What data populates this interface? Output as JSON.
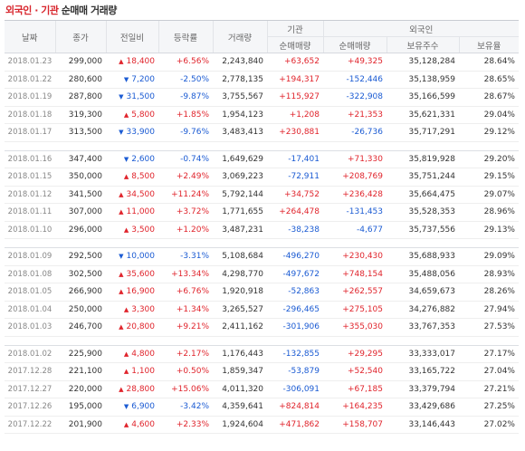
{
  "title": {
    "part1": "외국인 · 기관",
    "part2": "순매매 거래량"
  },
  "headers": {
    "date": "날짜",
    "close": "종가",
    "change": "전일비",
    "rate": "등락률",
    "volume": "거래량",
    "institution": "기관",
    "foreign": "외국인",
    "inst_net": "순매매량",
    "foreign_net": "순매매량",
    "foreign_hold": "보유주수",
    "foreign_ratio": "보유율"
  },
  "colors": {
    "up": "#e0242c",
    "down": "#1b5bd3",
    "title_accent": "#d8262d"
  },
  "groups": [
    {
      "rows": [
        {
          "date": "2018.01.23",
          "close": "299,000",
          "dir": "up",
          "change": "18,400",
          "rate": "+6.56%",
          "volume": "2,243,840",
          "inst_net": "+63,652",
          "foreign_net": "+49,325",
          "foreign_hold": "35,128,284",
          "foreign_ratio": "28.64%"
        },
        {
          "date": "2018.01.22",
          "close": "280,600",
          "dir": "down",
          "change": "7,200",
          "rate": "-2.50%",
          "volume": "2,778,135",
          "inst_net": "+194,317",
          "foreign_net": "-152,446",
          "foreign_hold": "35,138,959",
          "foreign_ratio": "28.65%"
        },
        {
          "date": "2018.01.19",
          "close": "287,800",
          "dir": "down",
          "change": "31,500",
          "rate": "-9.87%",
          "volume": "3,755,567",
          "inst_net": "+115,927",
          "foreign_net": "-322,908",
          "foreign_hold": "35,166,599",
          "foreign_ratio": "28.67%"
        },
        {
          "date": "2018.01.18",
          "close": "319,300",
          "dir": "up",
          "change": "5,800",
          "rate": "+1.85%",
          "volume": "1,954,123",
          "inst_net": "+1,208",
          "foreign_net": "+21,353",
          "foreign_hold": "35,621,331",
          "foreign_ratio": "29.04%"
        },
        {
          "date": "2018.01.17",
          "close": "313,500",
          "dir": "down",
          "change": "33,900",
          "rate": "-9.76%",
          "volume": "3,483,413",
          "inst_net": "+230,881",
          "foreign_net": "-26,736",
          "foreign_hold": "35,717,291",
          "foreign_ratio": "29.12%"
        }
      ]
    },
    {
      "rows": [
        {
          "date": "2018.01.16",
          "close": "347,400",
          "dir": "down",
          "change": "2,600",
          "rate": "-0.74%",
          "volume": "1,649,629",
          "inst_net": "-17,401",
          "foreign_net": "+71,330",
          "foreign_hold": "35,819,928",
          "foreign_ratio": "29.20%"
        },
        {
          "date": "2018.01.15",
          "close": "350,000",
          "dir": "up",
          "change": "8,500",
          "rate": "+2.49%",
          "volume": "3,069,223",
          "inst_net": "-72,911",
          "foreign_net": "+208,769",
          "foreign_hold": "35,751,244",
          "foreign_ratio": "29.15%"
        },
        {
          "date": "2018.01.12",
          "close": "341,500",
          "dir": "up",
          "change": "34,500",
          "rate": "+11.24%",
          "volume": "5,792,144",
          "inst_net": "+34,752",
          "foreign_net": "+236,428",
          "foreign_hold": "35,664,475",
          "foreign_ratio": "29.07%"
        },
        {
          "date": "2018.01.11",
          "close": "307,000",
          "dir": "up",
          "change": "11,000",
          "rate": "+3.72%",
          "volume": "1,771,655",
          "inst_net": "+264,478",
          "foreign_net": "-131,453",
          "foreign_hold": "35,528,353",
          "foreign_ratio": "28.96%"
        },
        {
          "date": "2018.01.10",
          "close": "296,000",
          "dir": "up",
          "change": "3,500",
          "rate": "+1.20%",
          "volume": "3,487,231",
          "inst_net": "-38,238",
          "foreign_net": "-4,677",
          "foreign_hold": "35,737,556",
          "foreign_ratio": "29.13%"
        }
      ]
    },
    {
      "rows": [
        {
          "date": "2018.01.09",
          "close": "292,500",
          "dir": "down",
          "change": "10,000",
          "rate": "-3.31%",
          "volume": "5,108,684",
          "inst_net": "-496,270",
          "foreign_net": "+230,430",
          "foreign_hold": "35,688,933",
          "foreign_ratio": "29.09%"
        },
        {
          "date": "2018.01.08",
          "close": "302,500",
          "dir": "up",
          "change": "35,600",
          "rate": "+13.34%",
          "volume": "4,298,770",
          "inst_net": "-497,672",
          "foreign_net": "+748,154",
          "foreign_hold": "35,488,056",
          "foreign_ratio": "28.93%"
        },
        {
          "date": "2018.01.05",
          "close": "266,900",
          "dir": "up",
          "change": "16,900",
          "rate": "+6.76%",
          "volume": "1,920,918",
          "inst_net": "-52,863",
          "foreign_net": "+262,557",
          "foreign_hold": "34,659,673",
          "foreign_ratio": "28.26%"
        },
        {
          "date": "2018.01.04",
          "close": "250,000",
          "dir": "up",
          "change": "3,300",
          "rate": "+1.34%",
          "volume": "3,265,527",
          "inst_net": "-296,465",
          "foreign_net": "+275,105",
          "foreign_hold": "34,276,882",
          "foreign_ratio": "27.94%"
        },
        {
          "date": "2018.01.03",
          "close": "246,700",
          "dir": "up",
          "change": "20,800",
          "rate": "+9.21%",
          "volume": "2,411,162",
          "inst_net": "-301,906",
          "foreign_net": "+355,030",
          "foreign_hold": "33,767,353",
          "foreign_ratio": "27.53%"
        }
      ]
    },
    {
      "rows": [
        {
          "date": "2018.01.02",
          "close": "225,900",
          "dir": "up",
          "change": "4,800",
          "rate": "+2.17%",
          "volume": "1,176,443",
          "inst_net": "-132,855",
          "foreign_net": "+29,295",
          "foreign_hold": "33,333,017",
          "foreign_ratio": "27.17%"
        },
        {
          "date": "2017.12.28",
          "close": "221,100",
          "dir": "up",
          "change": "1,100",
          "rate": "+0.50%",
          "volume": "1,859,347",
          "inst_net": "-53,879",
          "foreign_net": "+52,540",
          "foreign_hold": "33,165,722",
          "foreign_ratio": "27.04%"
        },
        {
          "date": "2017.12.27",
          "close": "220,000",
          "dir": "up",
          "change": "28,800",
          "rate": "+15.06%",
          "volume": "4,011,320",
          "inst_net": "-306,091",
          "foreign_net": "+67,185",
          "foreign_hold": "33,379,794",
          "foreign_ratio": "27.21%"
        },
        {
          "date": "2017.12.26",
          "close": "195,000",
          "dir": "down",
          "change": "6,900",
          "rate": "-3.42%",
          "volume": "4,359,641",
          "inst_net": "+824,814",
          "foreign_net": "+164,235",
          "foreign_hold": "33,429,686",
          "foreign_ratio": "27.25%"
        },
        {
          "date": "2017.12.22",
          "close": "201,900",
          "dir": "up",
          "change": "4,600",
          "rate": "+2.33%",
          "volume": "1,924,604",
          "inst_net": "+471,862",
          "foreign_net": "+158,707",
          "foreign_hold": "33,146,443",
          "foreign_ratio": "27.02%"
        }
      ]
    }
  ]
}
